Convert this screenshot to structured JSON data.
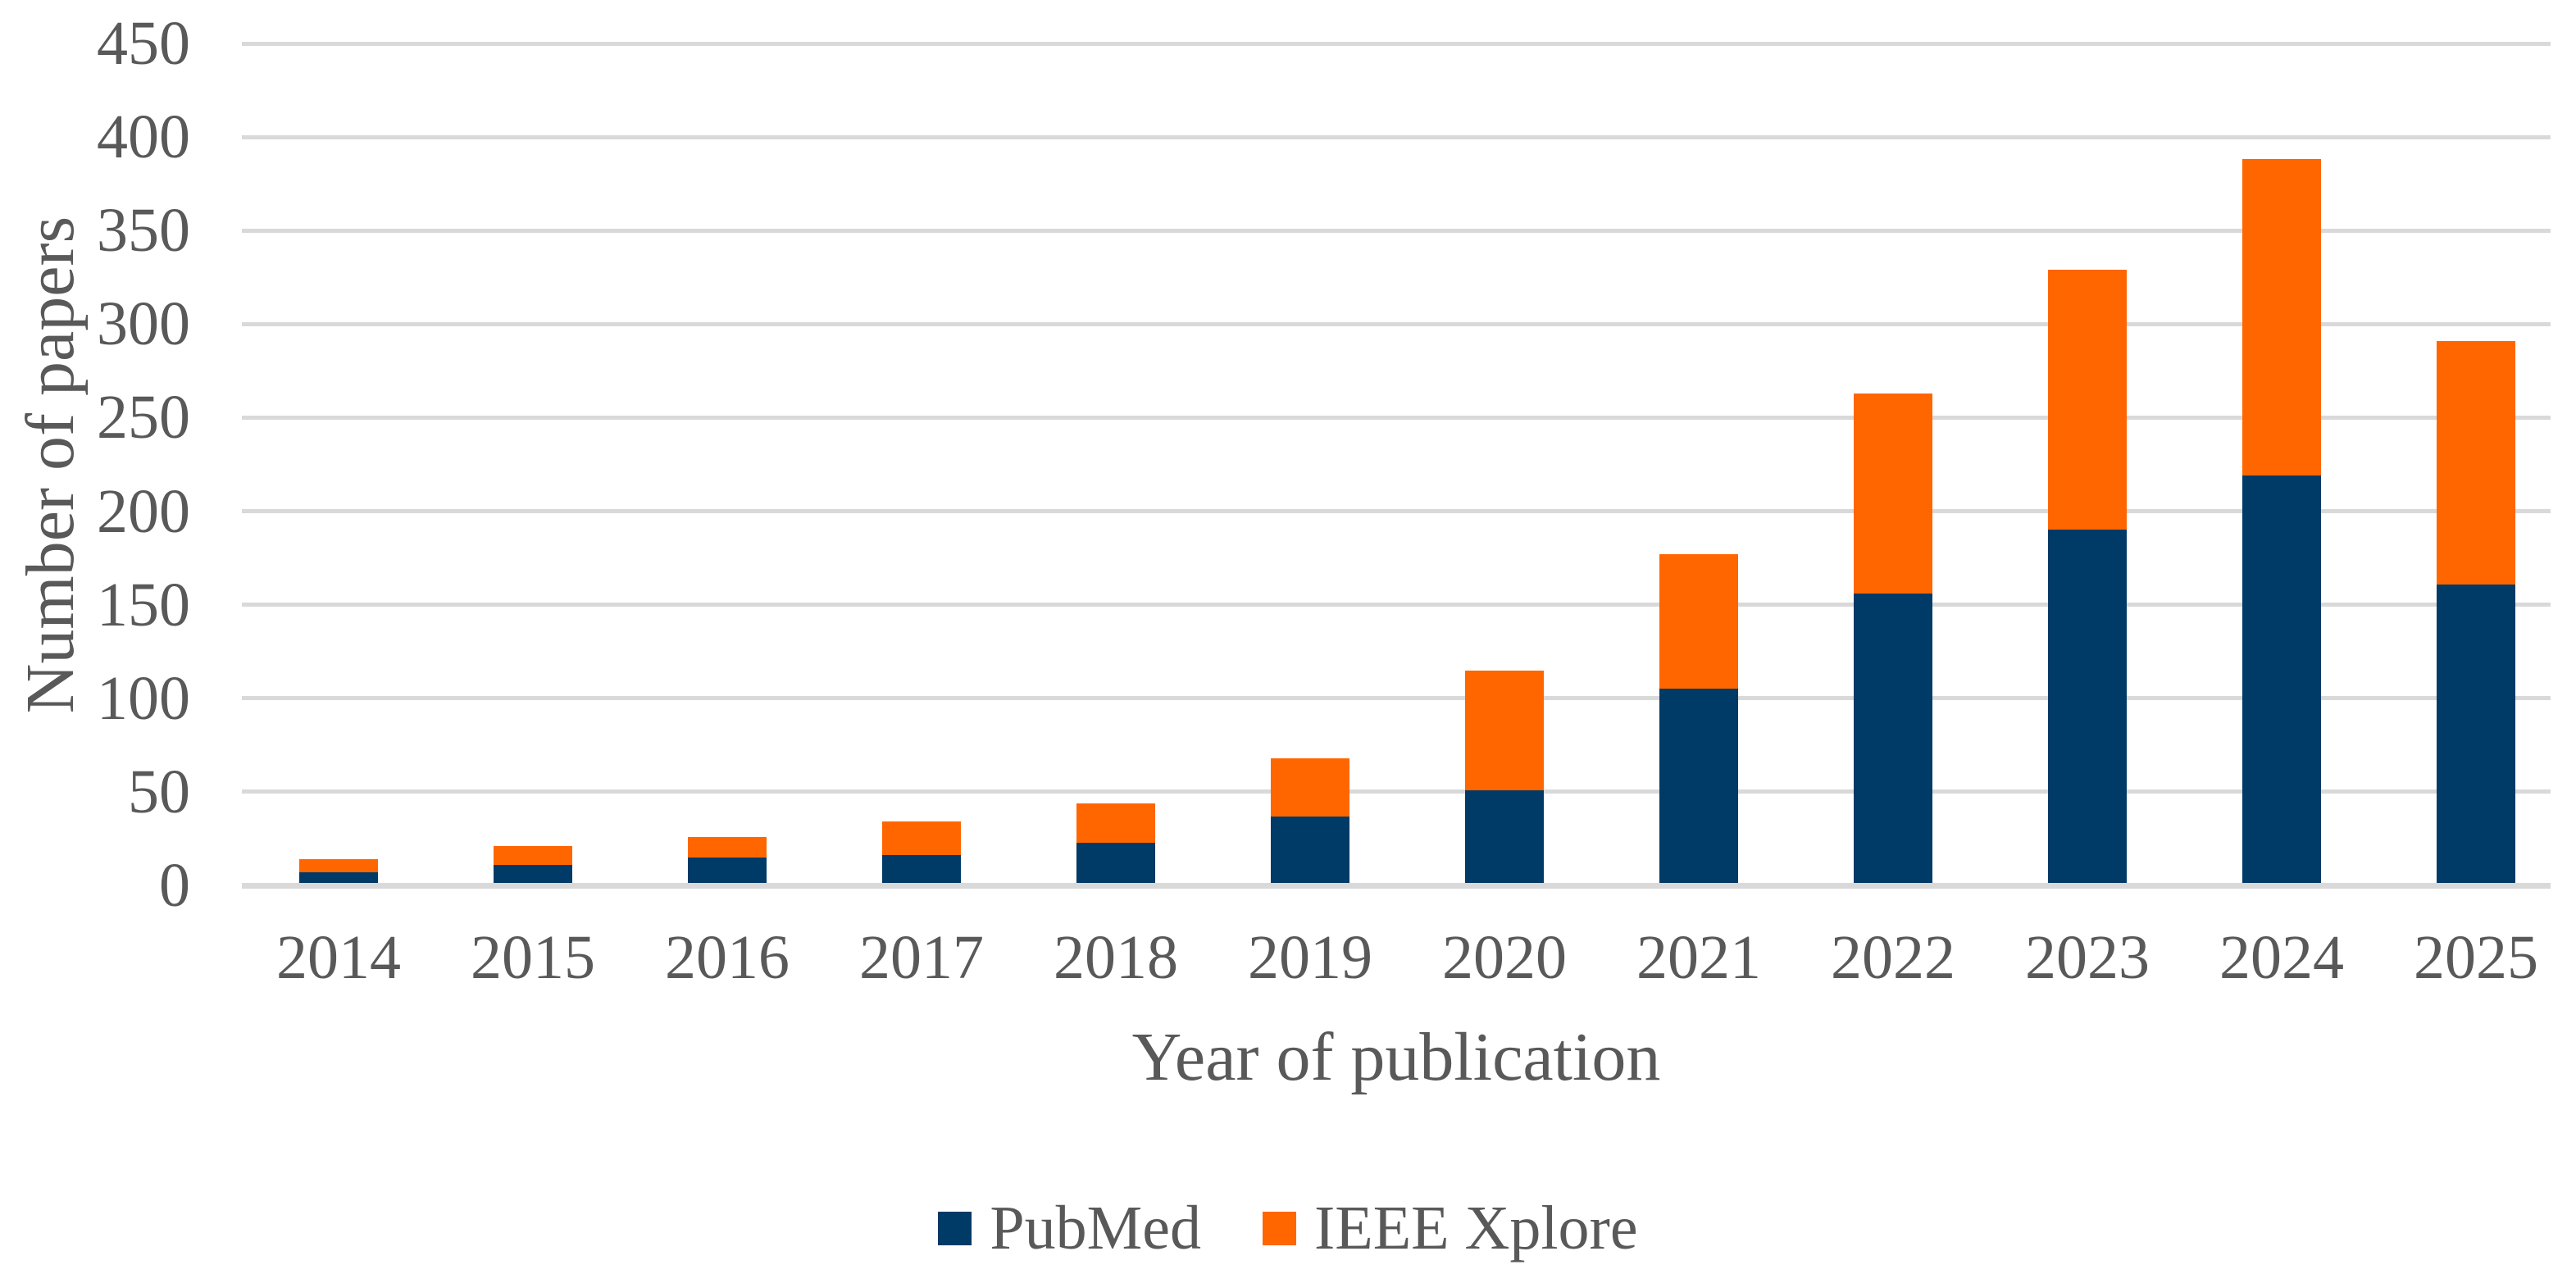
{
  "chart_data": {
    "type": "bar",
    "stacked": true,
    "title": "",
    "xlabel": "Year of publication",
    "ylabel": "Number of papers",
    "categories": [
      "2014",
      "2015",
      "2016",
      "2017",
      "2018",
      "2019",
      "2020",
      "2021",
      "2022",
      "2023",
      "2024",
      "2025"
    ],
    "series": [
      {
        "name": "PubMed",
        "color": "#003A66",
        "values": [
          7,
          11,
          15,
          16,
          23,
          37,
          51,
          105,
          156,
          190,
          219,
          161
        ]
      },
      {
        "name": "IEEE Xplore",
        "color": "#FF6600",
        "values": [
          7,
          10,
          11,
          18,
          21,
          31,
          64,
          72,
          107,
          139,
          169,
          130
        ]
      }
    ],
    "ylim": [
      0,
      450
    ],
    "ytick_interval": 50,
    "yticks": [
      0,
      50,
      100,
      150,
      200,
      250,
      300,
      350,
      400,
      450
    ],
    "grid": "horizontal",
    "legend_position": "bottom",
    "colors": {
      "text": "#595959",
      "gridline": "#D9D9D9",
      "background": "#FFFFFF"
    }
  }
}
